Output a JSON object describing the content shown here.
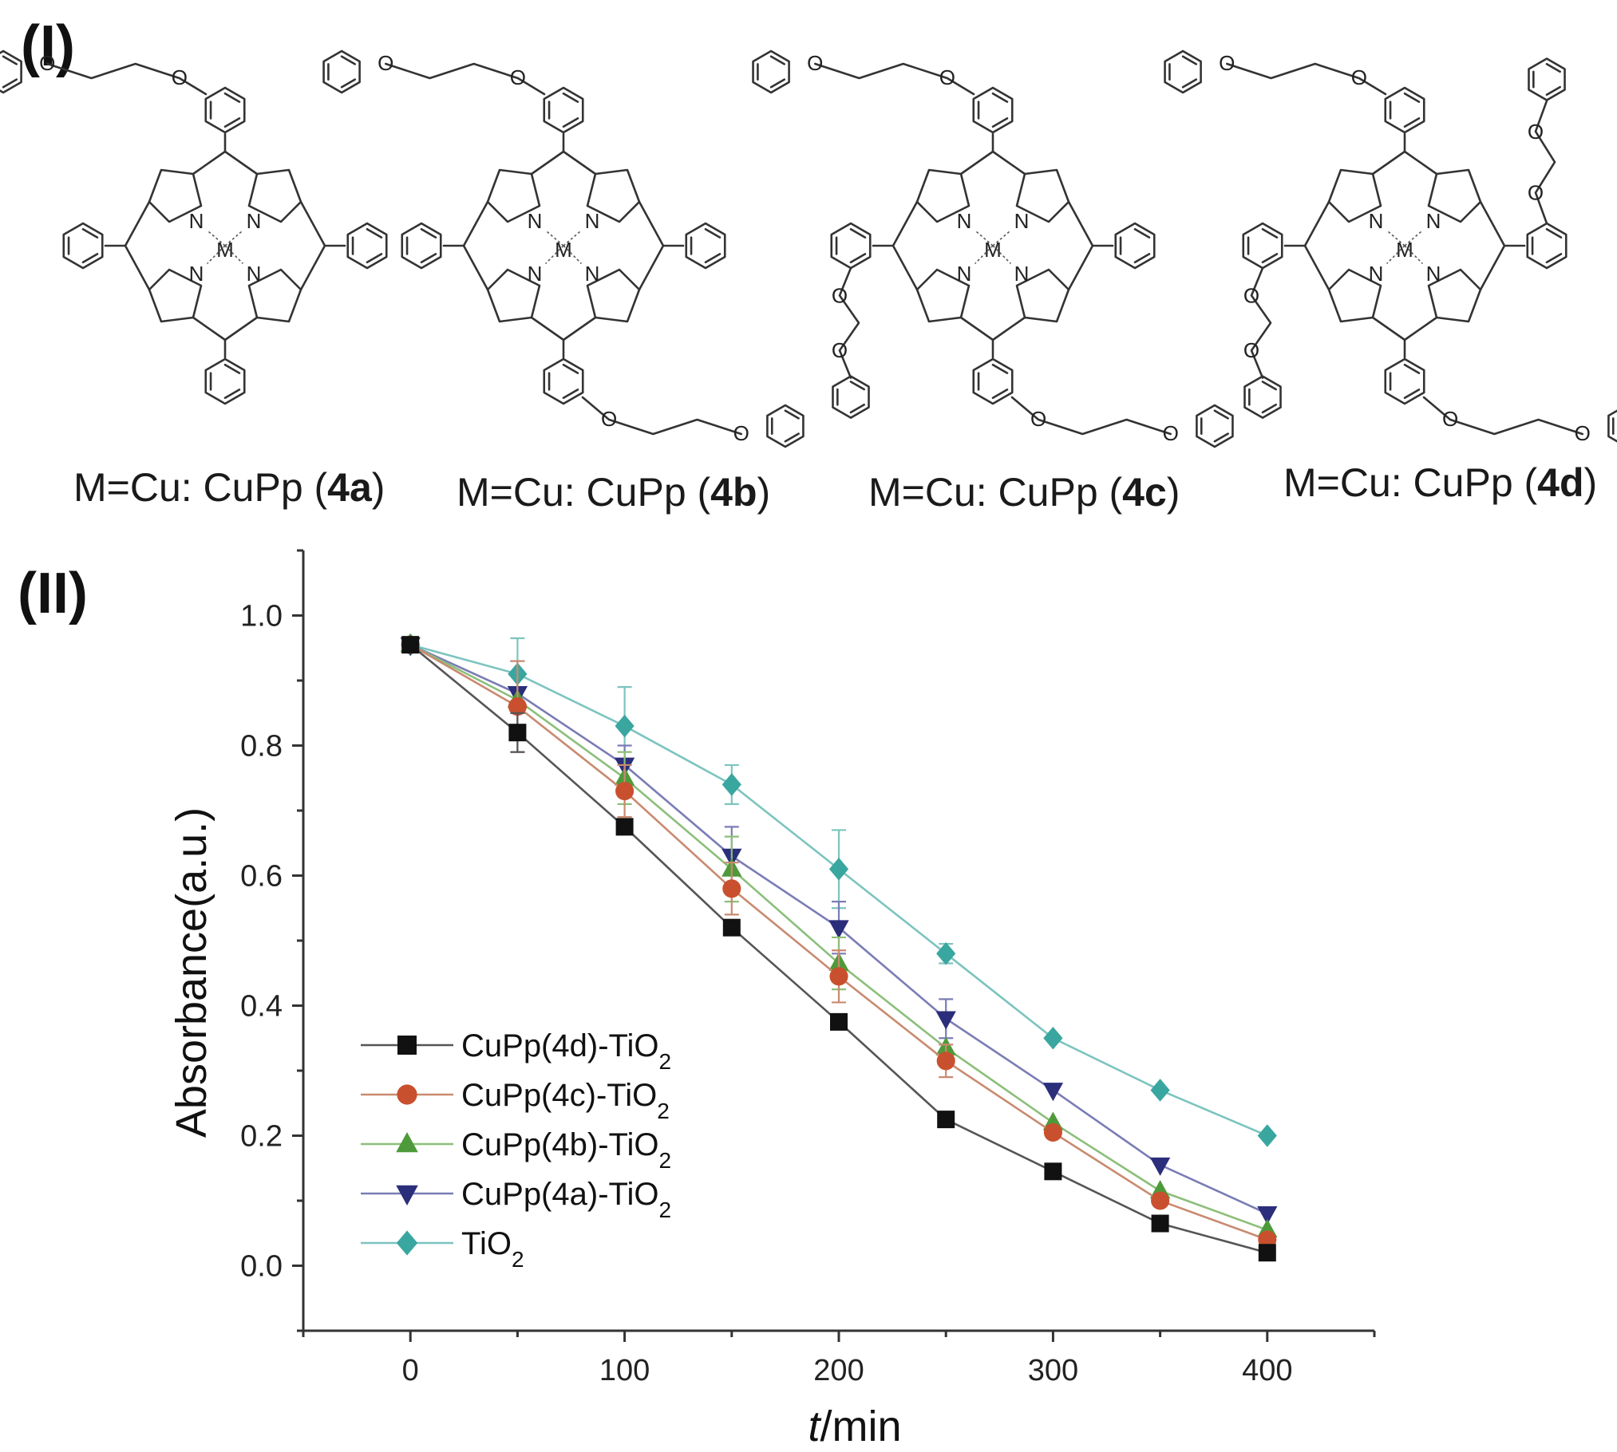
{
  "panels": {
    "structures_label": "(I)",
    "chart_label": "(II)"
  },
  "molecules": [
    {
      "prefix": "M=Cu: CuPp (",
      "code": "4a",
      "suffix": ")"
    },
    {
      "prefix": "M=Cu: CuPp (",
      "code": "4b",
      "suffix": ")"
    },
    {
      "prefix": "M=Cu: CuPp (",
      "code": "4c",
      "suffix": ")"
    },
    {
      "prefix": "M=Cu: CuPp (",
      "code": "4d",
      "suffix": ")"
    }
  ],
  "atoms": {
    "nitrogen": "N",
    "metal": "M",
    "oxygen": "O"
  },
  "chart_data": {
    "type": "line",
    "xlabel_italic": "t",
    "xlabel_rest": "/min",
    "ylabel": "Absorbance(a.u.)",
    "xlim": [
      -50,
      450
    ],
    "ylim": [
      -0.1,
      1.1
    ],
    "x_ticks": [
      0,
      100,
      200,
      300,
      400
    ],
    "x_tick_labels": [
      "0",
      "100",
      "200",
      "300",
      "400"
    ],
    "y_ticks": [
      0.0,
      0.2,
      0.4,
      0.6,
      0.8,
      1.0
    ],
    "y_tick_labels": [
      "0.0",
      "0.2",
      "0.4",
      "0.6",
      "0.8",
      "1.0"
    ],
    "grid": false,
    "legend_position": "lower-left",
    "x": [
      0,
      50,
      100,
      150,
      200,
      250,
      300,
      350,
      400
    ],
    "series": [
      {
        "name": "CuPp(4d)-TiO",
        "name_sub": "2",
        "marker": "square",
        "color": "#111111",
        "line_color": "#555555",
        "values": [
          0.955,
          0.82,
          0.675,
          0.52,
          0.375,
          0.225,
          0.145,
          0.065,
          0.02
        ],
        "errors": [
          0,
          0.03,
          0,
          0,
          0,
          0,
          0,
          0,
          0
        ]
      },
      {
        "name": "CuPp(4c)-TiO",
        "name_sub": "2",
        "marker": "circle",
        "color": "#c9502e",
        "line_color": "#c98a70",
        "values": [
          0.955,
          0.86,
          0.73,
          0.58,
          0.445,
          0.315,
          0.205,
          0.1,
          0.04
        ],
        "errors": [
          0,
          0.07,
          0.04,
          0.04,
          0.04,
          0.025,
          0,
          0,
          0
        ]
      },
      {
        "name": "CuPp(4b)-TiO",
        "name_sub": "2",
        "marker": "triangle-up",
        "color": "#4e9a3a",
        "line_color": "#8cbf7a",
        "values": [
          0.955,
          0.87,
          0.75,
          0.61,
          0.465,
          0.335,
          0.22,
          0.115,
          0.055
        ],
        "errors": [
          0,
          0.06,
          0.04,
          0.05,
          0.04,
          0,
          0,
          0,
          0
        ]
      },
      {
        "name": "CuPp(4a)-TiO",
        "name_sub": "2",
        "marker": "triangle-down",
        "color": "#2b2e7a",
        "line_color": "#7a7cb5",
        "values": [
          0.955,
          0.88,
          0.77,
          0.63,
          0.52,
          0.38,
          0.27,
          0.155,
          0.08
        ],
        "errors": [
          0,
          0.05,
          0.03,
          0.045,
          0.04,
          0.03,
          0,
          0,
          0
        ]
      },
      {
        "name": "TiO",
        "name_sub": "2",
        "marker": "diamond",
        "color": "#3aa6a0",
        "line_color": "#7cc4bf",
        "values": [
          0.955,
          0.91,
          0.83,
          0.74,
          0.61,
          0.48,
          0.35,
          0.27,
          0.2
        ],
        "errors": [
          0,
          0.055,
          0.06,
          0.03,
          0.06,
          0.015,
          0,
          0,
          0
        ]
      }
    ]
  }
}
